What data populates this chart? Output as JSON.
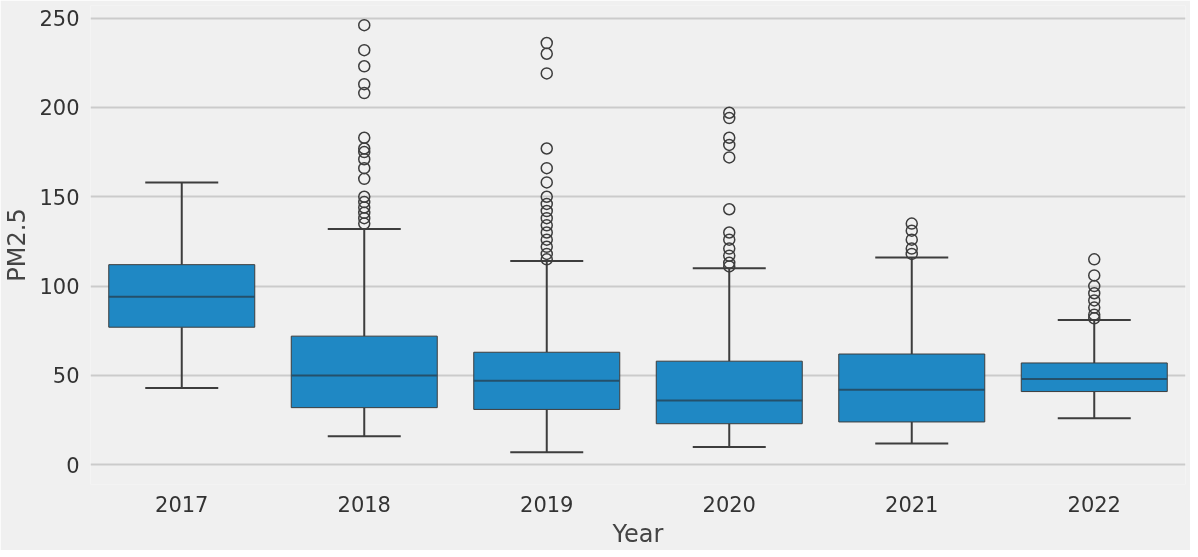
{
  "chart_data": {
    "type": "box",
    "xlabel": "Year",
    "ylabel": "PM2.5",
    "categories": [
      "2017",
      "2018",
      "2019",
      "2020",
      "2021",
      "2022"
    ],
    "color": "#1f88c4",
    "boxes": [
      {
        "low": 43,
        "q1": 77,
        "median": 94,
        "q3": 112,
        "high": 158
      },
      {
        "low": 16,
        "q1": 32,
        "median": 50,
        "q3": 72,
        "high": 132,
        "outliers": [
          246,
          232,
          223,
          213,
          208,
          183,
          177,
          175,
          171,
          166,
          160,
          150,
          147,
          144,
          141,
          138,
          135
        ]
      },
      {
        "low": 7,
        "q1": 31,
        "median": 47,
        "q3": 63,
        "high": 114,
        "outliers": [
          236,
          230,
          219,
          177,
          166,
          158,
          150,
          146,
          142,
          138,
          134,
          130,
          126,
          122,
          118,
          115
        ]
      },
      {
        "low": 10,
        "q1": 23,
        "median": 36,
        "q3": 58,
        "high": 110,
        "outliers": [
          197,
          194,
          183,
          179,
          172,
          143,
          130,
          126,
          121,
          117,
          113,
          111
        ]
      },
      {
        "low": 12,
        "q1": 24,
        "median": 42,
        "q3": 62,
        "high": 116,
        "outliers": [
          135,
          131,
          126,
          121,
          118
        ]
      },
      {
        "low": 26,
        "q1": 41,
        "median": 48,
        "q3": 57,
        "high": 81,
        "outliers": [
          115,
          106,
          100,
          96,
          92,
          88,
          84,
          82
        ]
      }
    ],
    "ylim": [
      -11,
      257
    ],
    "yticks": [
      0,
      50,
      100,
      150,
      200,
      250
    ],
    "grid": "y"
  }
}
